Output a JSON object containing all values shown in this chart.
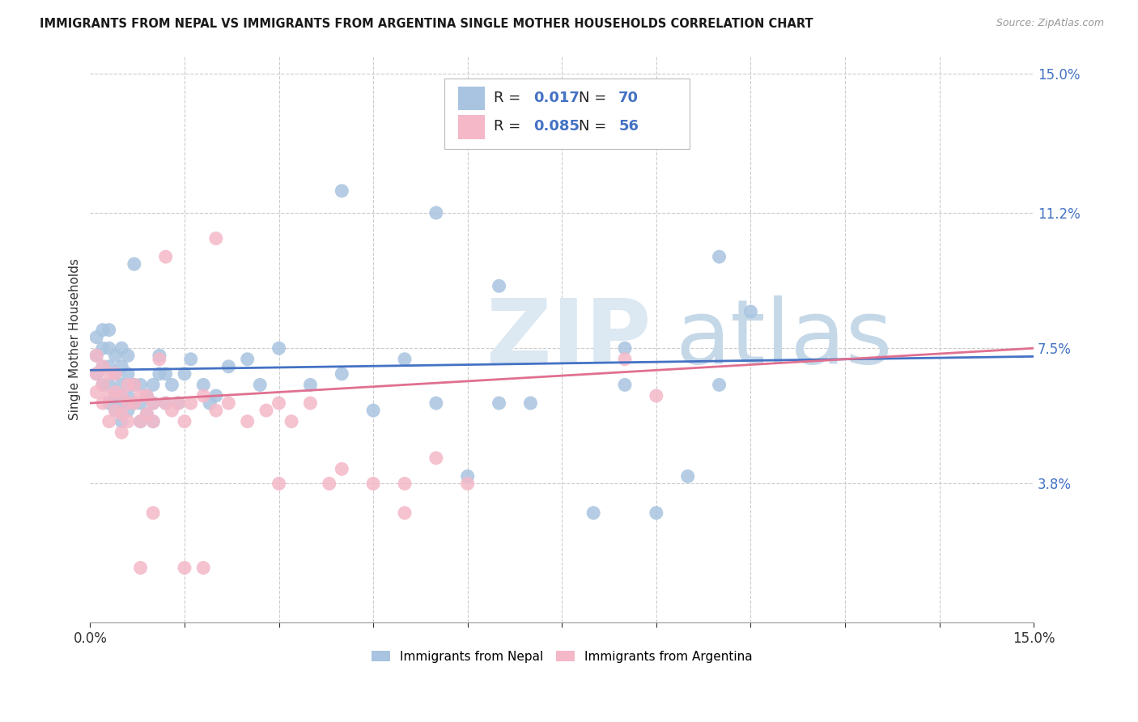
{
  "title": "IMMIGRANTS FROM NEPAL VS IMMIGRANTS FROM ARGENTINA SINGLE MOTHER HOUSEHOLDS CORRELATION CHART",
  "source": "Source: ZipAtlas.com",
  "ylabel": "Single Mother Households",
  "ytick_labels": [
    "15.0%",
    "11.2%",
    "7.5%",
    "3.8%"
  ],
  "ytick_values": [
    0.15,
    0.112,
    0.075,
    0.038
  ],
  "xlim": [
    0.0,
    0.15
  ],
  "ylim": [
    0.0,
    0.155
  ],
  "nepal_color": "#a8c4e0",
  "argentina_color": "#f4b8c8",
  "nepal_line_color": "#4472c4",
  "argentina_line_color": "#e07090",
  "nepal_x": [
    0.001,
    0.001,
    0.001,
    0.002,
    0.002,
    0.002,
    0.002,
    0.003,
    0.003,
    0.003,
    0.003,
    0.003,
    0.004,
    0.004,
    0.004,
    0.004,
    0.005,
    0.005,
    0.005,
    0.005,
    0.005,
    0.006,
    0.006,
    0.006,
    0.006,
    0.007,
    0.007,
    0.007,
    0.008,
    0.008,
    0.008,
    0.009,
    0.009,
    0.01,
    0.01,
    0.01,
    0.011,
    0.011,
    0.012,
    0.012,
    0.013,
    0.014,
    0.015,
    0.016,
    0.018,
    0.019,
    0.02,
    0.022,
    0.025,
    0.027,
    0.03,
    0.035,
    0.04,
    0.045,
    0.05,
    0.055,
    0.06,
    0.065,
    0.07,
    0.085,
    0.09,
    0.095,
    0.1,
    0.1,
    0.105,
    0.04,
    0.055,
    0.065,
    0.08,
    0.085
  ],
  "nepal_y": [
    0.068,
    0.073,
    0.078,
    0.065,
    0.07,
    0.075,
    0.08,
    0.06,
    0.065,
    0.07,
    0.075,
    0.08,
    0.058,
    0.062,
    0.068,
    0.073,
    0.055,
    0.06,
    0.065,
    0.07,
    0.075,
    0.058,
    0.062,
    0.068,
    0.073,
    0.098,
    0.06,
    0.065,
    0.055,
    0.06,
    0.065,
    0.057,
    0.062,
    0.055,
    0.06,
    0.065,
    0.068,
    0.073,
    0.06,
    0.068,
    0.065,
    0.06,
    0.068,
    0.072,
    0.065,
    0.06,
    0.062,
    0.07,
    0.072,
    0.065,
    0.075,
    0.065,
    0.068,
    0.058,
    0.072,
    0.06,
    0.04,
    0.06,
    0.06,
    0.065,
    0.03,
    0.04,
    0.1,
    0.065,
    0.085,
    0.118,
    0.112,
    0.092,
    0.03,
    0.075
  ],
  "argentina_x": [
    0.001,
    0.001,
    0.001,
    0.002,
    0.002,
    0.002,
    0.003,
    0.003,
    0.003,
    0.004,
    0.004,
    0.004,
    0.005,
    0.005,
    0.005,
    0.006,
    0.006,
    0.006,
    0.007,
    0.007,
    0.008,
    0.008,
    0.009,
    0.009,
    0.01,
    0.01,
    0.011,
    0.012,
    0.013,
    0.014,
    0.015,
    0.016,
    0.018,
    0.02,
    0.022,
    0.025,
    0.028,
    0.03,
    0.032,
    0.035,
    0.038,
    0.04,
    0.045,
    0.05,
    0.055,
    0.06,
    0.085,
    0.09,
    0.05,
    0.03,
    0.02,
    0.008,
    0.01,
    0.012,
    0.015,
    0.018
  ],
  "argentina_y": [
    0.063,
    0.068,
    0.073,
    0.06,
    0.065,
    0.07,
    0.055,
    0.062,
    0.068,
    0.058,
    0.063,
    0.068,
    0.052,
    0.057,
    0.062,
    0.055,
    0.06,
    0.065,
    0.06,
    0.065,
    0.055,
    0.062,
    0.057,
    0.062,
    0.055,
    0.06,
    0.072,
    0.06,
    0.058,
    0.06,
    0.055,
    0.06,
    0.062,
    0.058,
    0.06,
    0.055,
    0.058,
    0.06,
    0.055,
    0.06,
    0.038,
    0.042,
    0.038,
    0.038,
    0.045,
    0.038,
    0.072,
    0.062,
    0.03,
    0.038,
    0.105,
    0.015,
    0.03,
    0.1,
    0.015,
    0.015
  ],
  "legend_R_nepal": "0.017",
  "legend_N_nepal": "70",
  "legend_R_argentina": "0.085",
  "legend_N_argentina": "56"
}
